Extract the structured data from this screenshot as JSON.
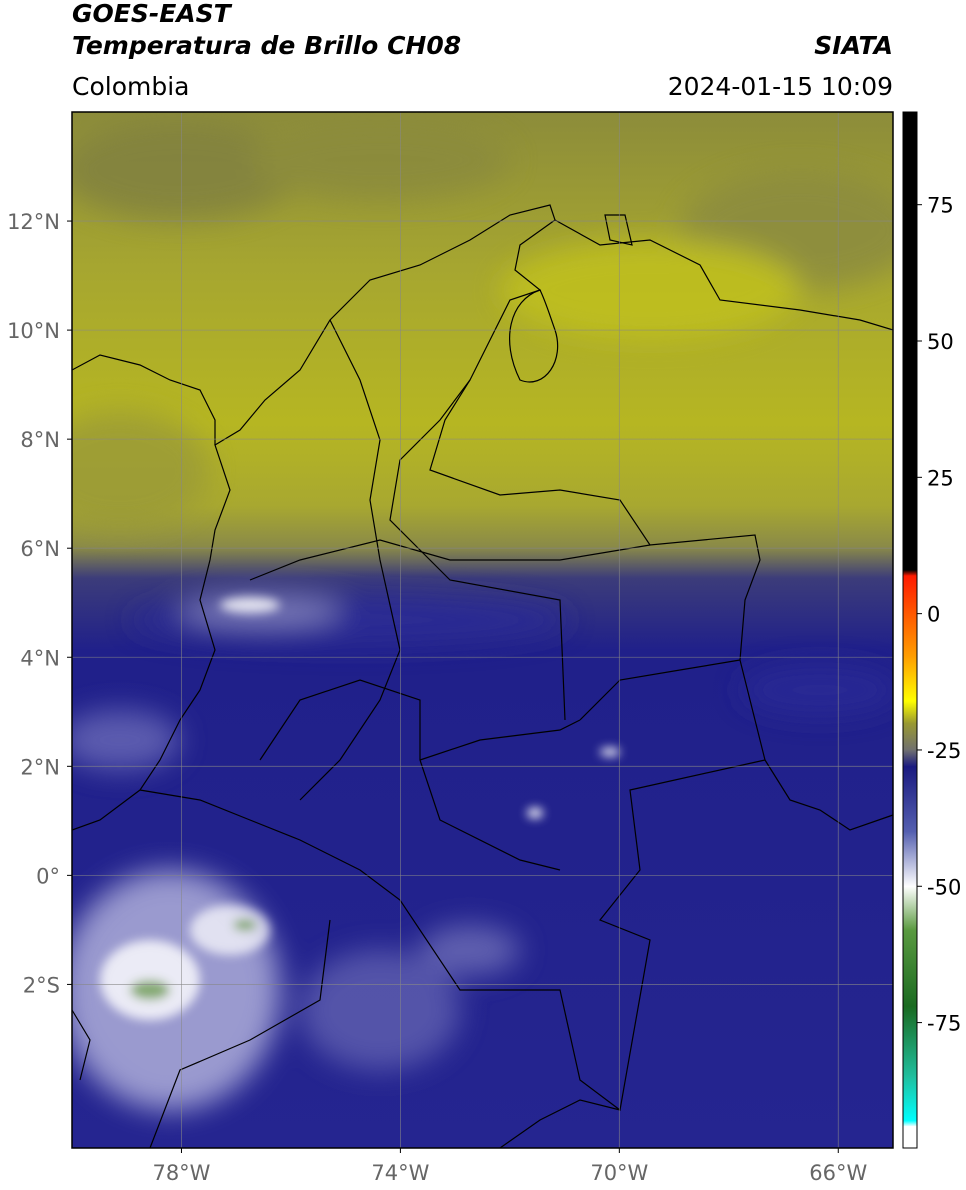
{
  "header": {
    "title": "GOES-EAST",
    "subtitle": "Temperatura de Brillo CH08",
    "agency": "SIATA",
    "region": "Colombia",
    "datetime": "2024-01-15 10:09"
  },
  "map": {
    "lon_range": [
      -80,
      -65
    ],
    "lat_range": [
      -5,
      14
    ],
    "lon_ticks": [
      {
        "value": -78,
        "label": "78°W"
      },
      {
        "value": -74,
        "label": "74°W"
      },
      {
        "value": -70,
        "label": "70°W"
      },
      {
        "value": -66,
        "label": "66°W"
      }
    ],
    "lat_ticks": [
      {
        "value": 12,
        "label": "12°N"
      },
      {
        "value": 10,
        "label": "10°N"
      },
      {
        "value": 8,
        "label": "8°N"
      },
      {
        "value": 6,
        "label": "6°N"
      },
      {
        "value": 4,
        "label": "4°N"
      },
      {
        "value": 2,
        "label": "2°N"
      },
      {
        "value": 0,
        "label": "0°"
      },
      {
        "value": -2,
        "label": "2°S"
      }
    ],
    "grid": true
  },
  "colorbar": {
    "range": [
      -98,
      92
    ],
    "ticks": [
      75,
      50,
      25,
      0,
      -25,
      -50,
      -75
    ],
    "stops": [
      {
        "value": 92,
        "color": "#000000"
      },
      {
        "value": 8,
        "color": "#000000"
      },
      {
        "value": 7,
        "color": "#ff1a00"
      },
      {
        "value": -8,
        "color": "#ffa000"
      },
      {
        "value": -16,
        "color": "#ffff00"
      },
      {
        "value": -20,
        "color": "#9a9a30"
      },
      {
        "value": -25,
        "color": "#707070"
      },
      {
        "value": -28,
        "color": "#1a1a80"
      },
      {
        "value": -40,
        "color": "#5560b0"
      },
      {
        "value": -50,
        "color": "#ffffff"
      },
      {
        "value": -58,
        "color": "#5a9a40"
      },
      {
        "value": -72,
        "color": "#1a6a20"
      },
      {
        "value": -85,
        "color": "#20c0a0"
      },
      {
        "value": -93,
        "color": "#00ffff"
      },
      {
        "value": -94,
        "color": "#ffffff"
      },
      {
        "value": -98,
        "color": "#ffffff"
      }
    ]
  }
}
